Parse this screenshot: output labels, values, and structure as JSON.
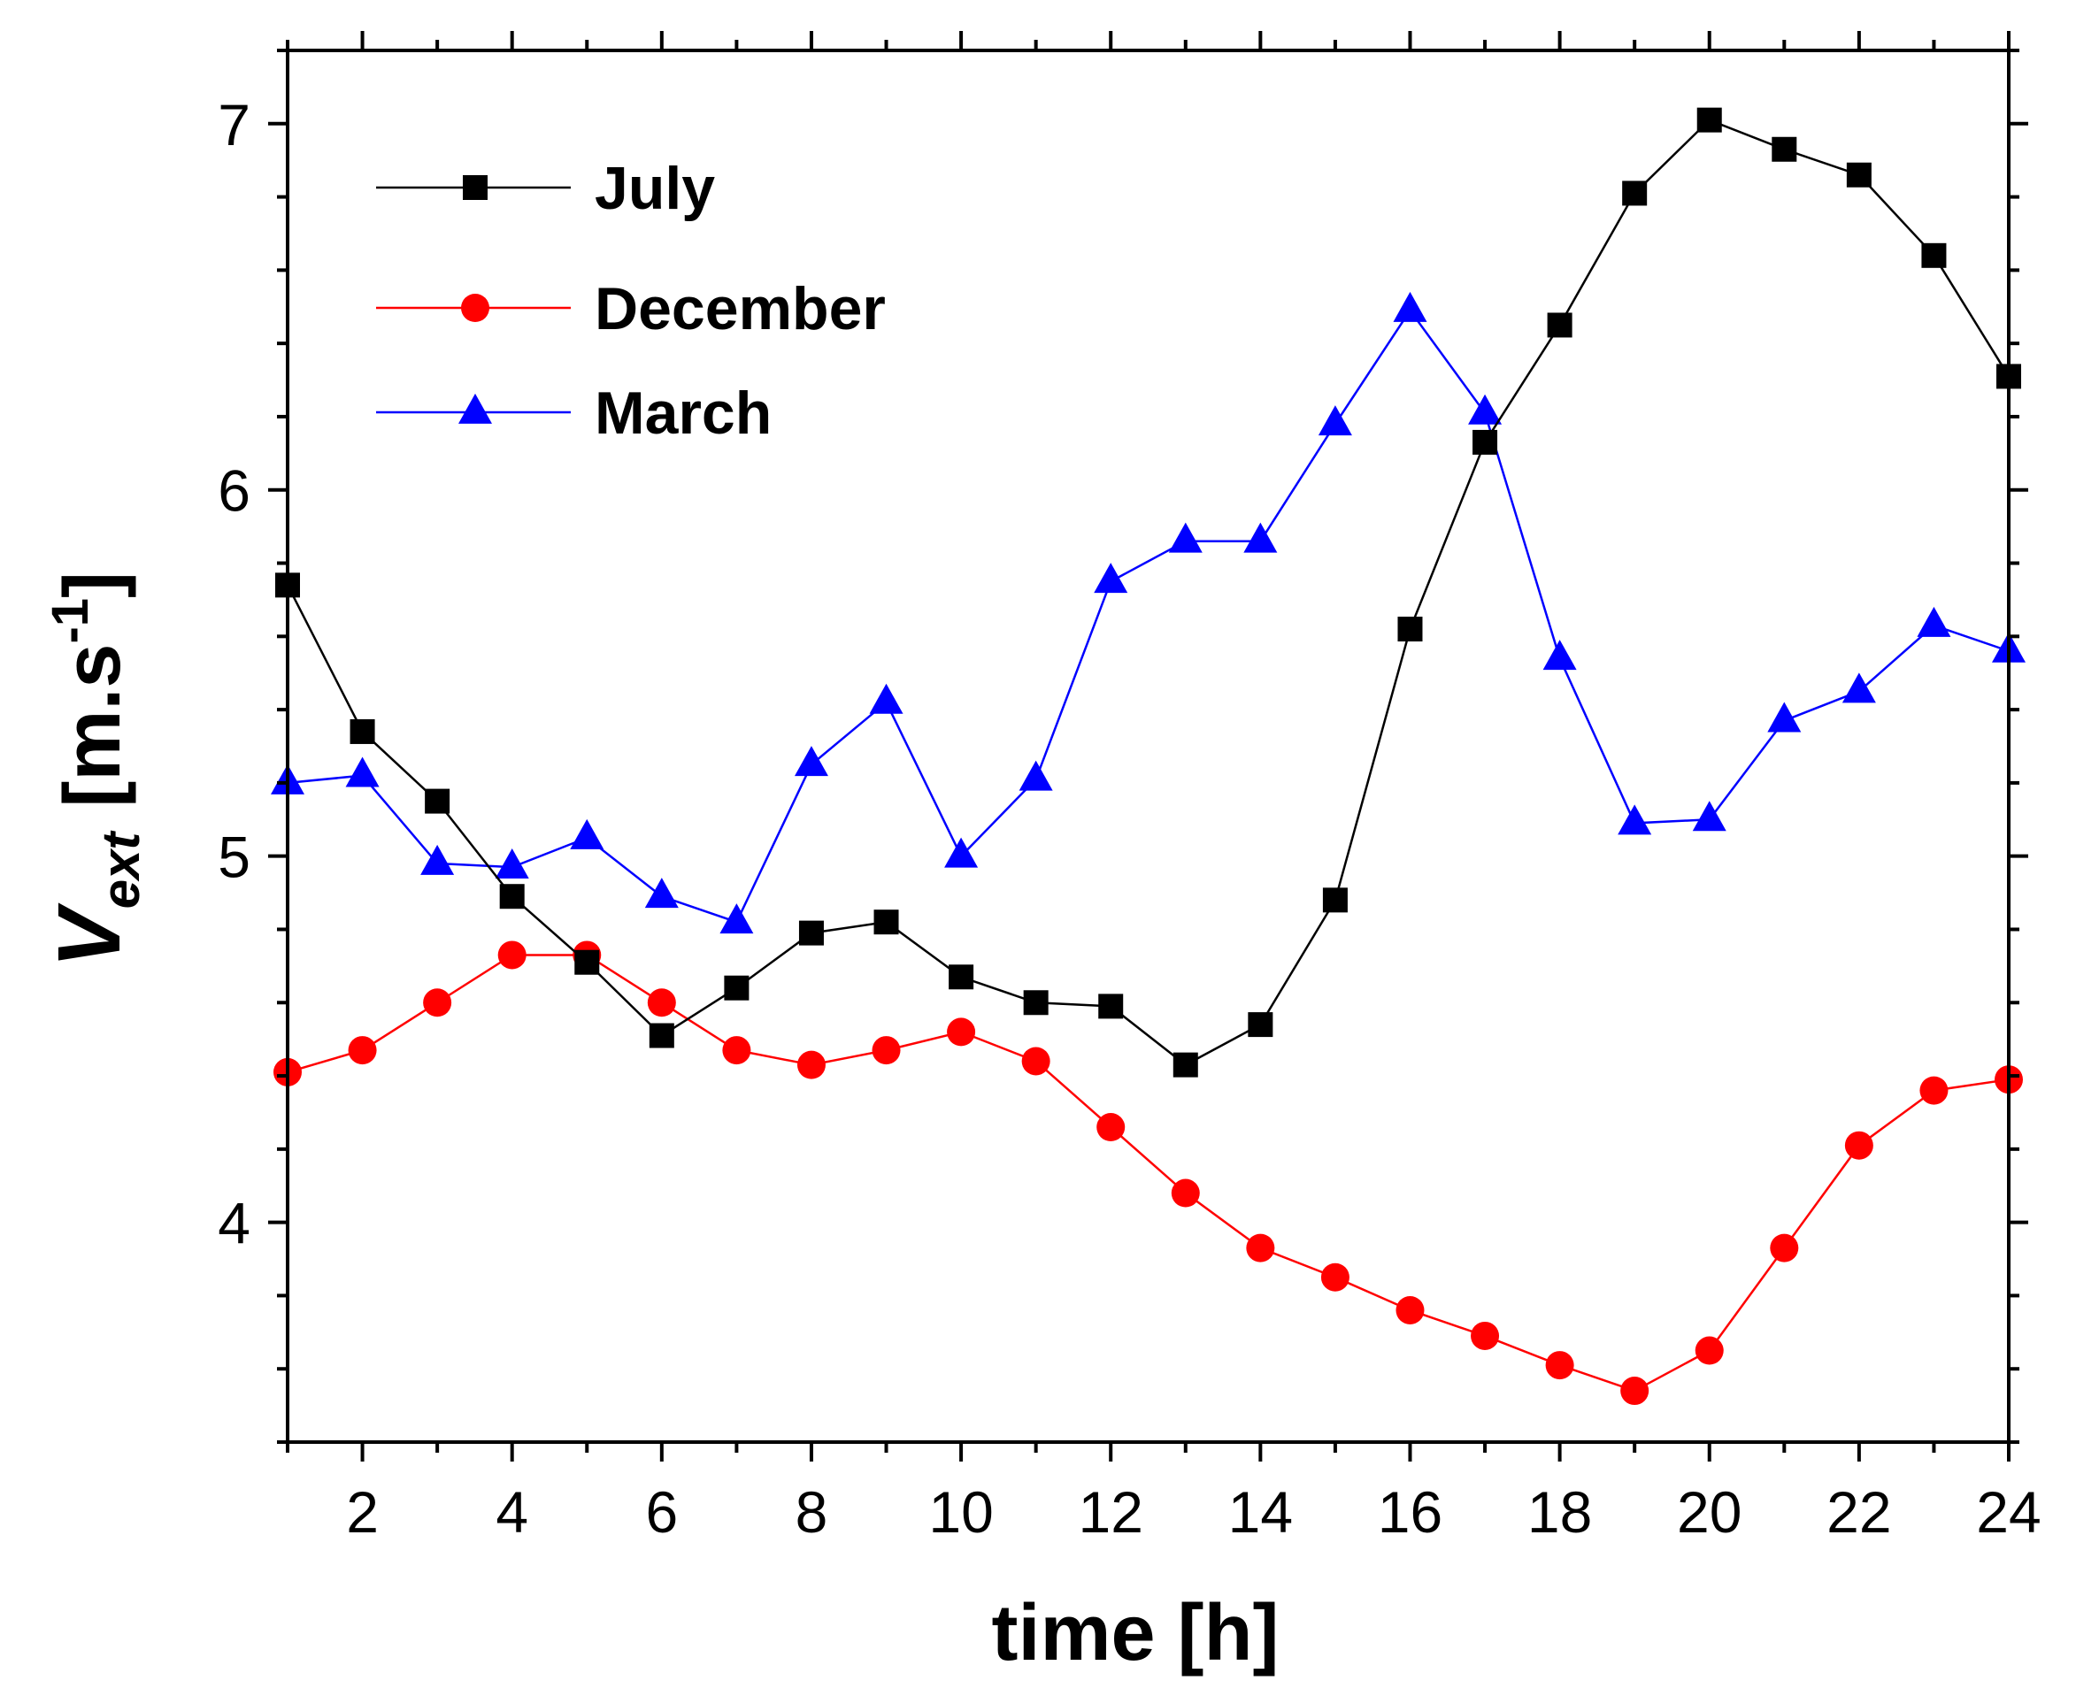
{
  "chart_data": {
    "type": "line",
    "title": "",
    "xlabel": "time [h]",
    "ylabel": {
      "main": "V",
      "subscript": "ext",
      "unit_open": "[m.s",
      "unit_sup": "-1",
      "unit_close": "]"
    },
    "xlim": [
      1,
      24
    ],
    "ylim": [
      3.4,
      7.2
    ],
    "xticks": [
      "2",
      "4",
      "6",
      "8",
      "10",
      "12",
      "14",
      "16",
      "18",
      "20",
      "22",
      "24"
    ],
    "yticks": [
      "4",
      "5",
      "6",
      "7"
    ],
    "grid": false,
    "legend_position": "top-left",
    "x": [
      1,
      2,
      3,
      4,
      5,
      6,
      7,
      8,
      9,
      10,
      11,
      12,
      13,
      14,
      15,
      16,
      17,
      18,
      19,
      20,
      21,
      22,
      23,
      24
    ],
    "series": [
      {
        "name": "July",
        "color": "#000000",
        "marker": "square",
        "values": [
          5.74,
          5.34,
          5.15,
          4.89,
          4.71,
          4.51,
          4.64,
          4.79,
          4.82,
          4.67,
          4.6,
          4.59,
          4.43,
          4.54,
          4.88,
          5.62,
          6.13,
          6.45,
          6.81,
          7.01,
          6.93,
          6.86,
          6.64,
          6.31
        ]
      },
      {
        "name": "December",
        "color": "#ff0000",
        "marker": "circle",
        "values": [
          4.41,
          4.47,
          4.6,
          4.73,
          4.73,
          4.6,
          4.47,
          4.43,
          4.47,
          4.52,
          4.44,
          4.26,
          4.08,
          3.93,
          3.85,
          3.76,
          3.69,
          3.61,
          3.54,
          3.65,
          3.93,
          4.21,
          4.36,
          4.39
        ]
      },
      {
        "name": "March",
        "color": "#0000ff",
        "marker": "triangle",
        "values": [
          5.2,
          5.22,
          4.98,
          4.97,
          5.05,
          4.89,
          4.82,
          5.25,
          5.42,
          5.0,
          5.21,
          5.75,
          5.86,
          5.86,
          6.18,
          6.49,
          6.21,
          5.54,
          5.09,
          5.1,
          5.37,
          5.45,
          5.63,
          5.56
        ]
      }
    ]
  }
}
